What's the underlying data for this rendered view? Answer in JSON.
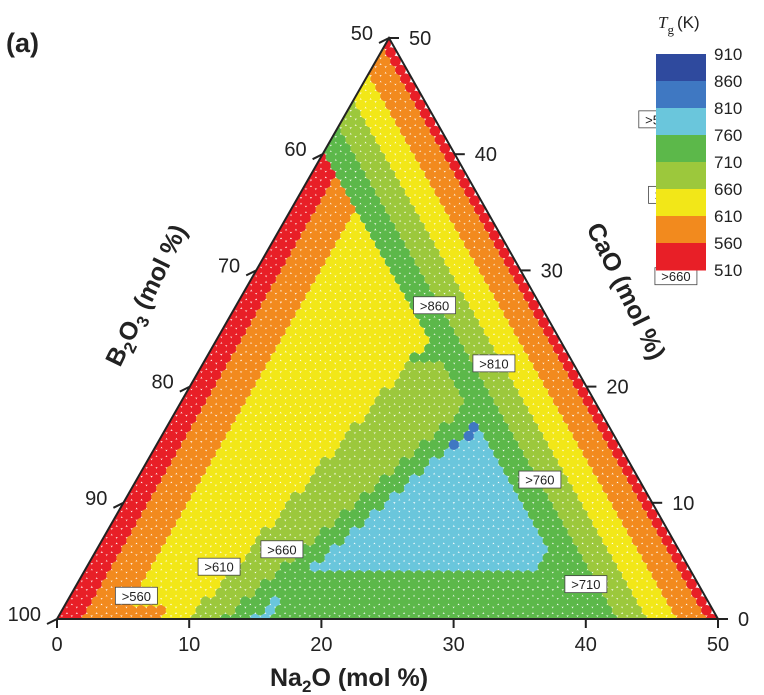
{
  "panel_label": "(a)",
  "chart_data": {
    "type": "ternary-heatmap",
    "axes": {
      "bottom": {
        "label_parts": [
          "Na",
          "2",
          "O (mol %)"
        ],
        "ticks": [
          0,
          10,
          20,
          30,
          40,
          50
        ],
        "range": [
          0,
          50
        ]
      },
      "right": {
        "label_parts": [
          "CaO (mol %)"
        ],
        "ticks": [
          0,
          10,
          20,
          30,
          40,
          50
        ],
        "range": [
          0,
          50
        ]
      },
      "left": {
        "label_parts": [
          "B",
          "2",
          "O",
          "3",
          " (mol %)"
        ],
        "ticks": [
          50,
          60,
          70,
          80,
          90,
          100
        ],
        "range": [
          50,
          100
        ]
      }
    },
    "colorbar": {
      "title_symbol": "T",
      "title_sub": "g",
      "title_unit": "(K)",
      "levels": [
        {
          "value": 910,
          "color": "#2f4a9e"
        },
        {
          "value": 860,
          "color": "#3f78c2"
        },
        {
          "value": 810,
          "color": "#6ac6dc"
        },
        {
          "value": 760,
          "color": "#5cb84a"
        },
        {
          "value": 710,
          "color": "#9cc83c"
        },
        {
          "value": 660,
          "color": "#f2e718"
        },
        {
          "value": 610,
          "color": "#f28a1e"
        },
        {
          "value": 560,
          "color": "#e81f27"
        },
        {
          "value": 510,
          "color": ""
        }
      ]
    },
    "region_labels": [
      {
        "text": ">560",
        "na2o": 24,
        "cao": 43
      },
      {
        "text": ">610",
        "na2o": 28,
        "cao": 36.5
      },
      {
        "text": ">660",
        "na2o": 32,
        "cao": 29.5
      },
      {
        "text": ">860",
        "na2o": 15,
        "cao": 27
      },
      {
        "text": ">810",
        "na2o": 22,
        "cao": 22
      },
      {
        "text": ">760",
        "na2o": 30.5,
        "cao": 12
      },
      {
        "text": ">710",
        "na2o": 38.5,
        "cao": 3
      },
      {
        "text": ">660",
        "na2o": 14,
        "cao": 6
      },
      {
        "text": ">610",
        "na2o": 10,
        "cao": 4.5
      },
      {
        "text": ">560",
        "na2o": 5,
        "cao": 2
      }
    ],
    "grid": false
  }
}
